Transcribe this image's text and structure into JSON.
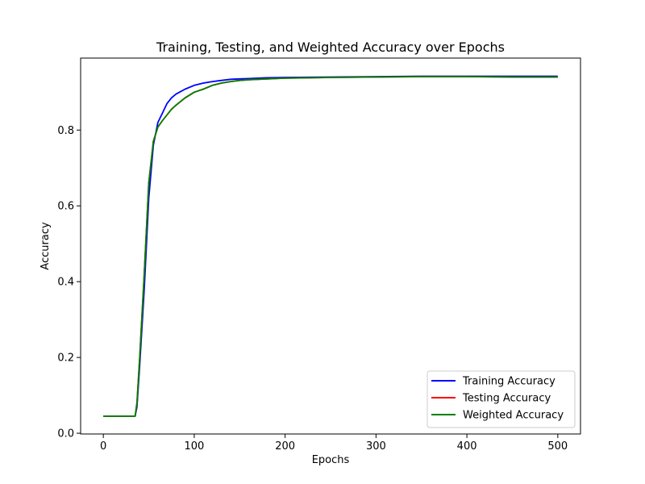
{
  "chart_data": {
    "type": "line",
    "title": "Training, Testing, and Weighted Accuracy over Epochs",
    "xlabel": "Epochs",
    "ylabel": "Accuracy",
    "xlim": [
      -25,
      525
    ],
    "ylim": [
      -0.002,
      0.99
    ],
    "xticks": [
      0,
      100,
      200,
      300,
      400,
      500
    ],
    "xtick_labels": [
      "0",
      "100",
      "200",
      "300",
      "400",
      "500"
    ],
    "yticks": [
      0.0,
      0.2,
      0.4,
      0.6,
      0.8
    ],
    "ytick_labels": [
      "0.0",
      "0.2",
      "0.4",
      "0.6",
      "0.8"
    ],
    "grid": false,
    "legend_position": "lower-right",
    "series": [
      {
        "name": "Training Accuracy",
        "color": "#0000ff",
        "x": [
          0,
          35,
          37,
          40,
          45,
          50,
          55,
          60,
          65,
          70,
          75,
          80,
          90,
          100,
          110,
          120,
          130,
          140,
          150,
          160,
          180,
          200,
          250,
          300,
          350,
          400,
          450,
          500
        ],
        "y": [
          0.045,
          0.045,
          0.07,
          0.18,
          0.38,
          0.62,
          0.76,
          0.82,
          0.845,
          0.87,
          0.885,
          0.895,
          0.908,
          0.918,
          0.924,
          0.928,
          0.931,
          0.934,
          0.935,
          0.936,
          0.938,
          0.939,
          0.94,
          0.941,
          0.942,
          0.942,
          0.942,
          0.942
        ]
      },
      {
        "name": "Testing Accuracy",
        "color": "#ff0000",
        "x": [
          0,
          35,
          37,
          40,
          45,
          50,
          55,
          60,
          65,
          70,
          75,
          80,
          90,
          100,
          110,
          120,
          130,
          140,
          150,
          160,
          180,
          200,
          250,
          300,
          350,
          400,
          450,
          500
        ],
        "y": [
          0.045,
          0.045,
          0.08,
          0.2,
          0.42,
          0.66,
          0.77,
          0.808,
          0.825,
          0.84,
          0.855,
          0.866,
          0.885,
          0.9,
          0.908,
          0.918,
          0.924,
          0.928,
          0.931,
          0.933,
          0.935,
          0.937,
          0.939,
          0.94,
          0.941,
          0.941,
          0.94,
          0.94
        ]
      },
      {
        "name": "Weighted Accuracy",
        "color": "#008000",
        "x": [
          0,
          35,
          37,
          40,
          45,
          50,
          55,
          60,
          65,
          70,
          75,
          80,
          90,
          100,
          110,
          120,
          130,
          140,
          150,
          160,
          180,
          200,
          250,
          300,
          350,
          400,
          450,
          500
        ],
        "y": [
          0.045,
          0.045,
          0.08,
          0.2,
          0.42,
          0.66,
          0.77,
          0.808,
          0.825,
          0.84,
          0.855,
          0.866,
          0.885,
          0.9,
          0.908,
          0.918,
          0.924,
          0.928,
          0.931,
          0.933,
          0.935,
          0.937,
          0.939,
          0.94,
          0.941,
          0.941,
          0.94,
          0.94
        ]
      }
    ]
  }
}
